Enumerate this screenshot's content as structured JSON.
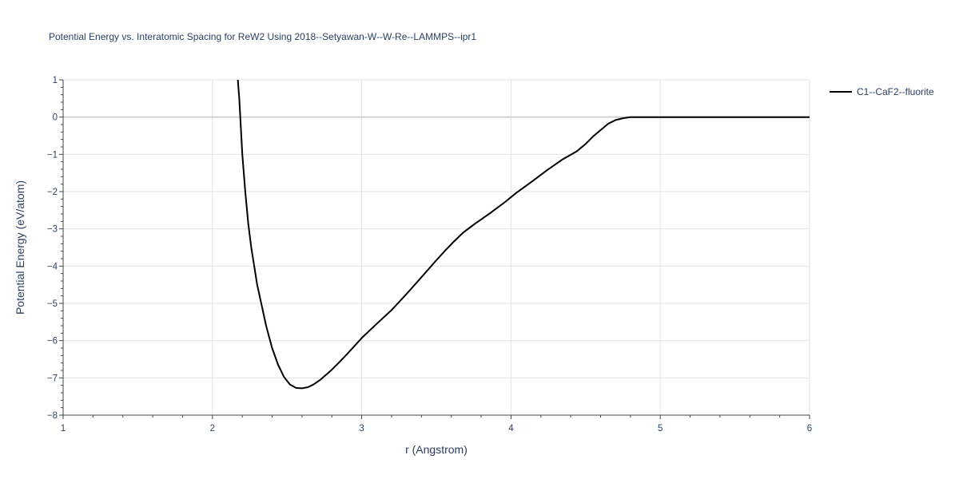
{
  "chart_data": {
    "type": "line",
    "title": "Potential Energy vs. Interatomic Spacing for ReW2 Using 2018--Setyawan-W--W-Re--LAMMPS--ipr1",
    "xlabel": "r (Angstrom)",
    "ylabel": "Potential Energy (eV/atom)",
    "xlim": [
      1,
      6
    ],
    "ylim": [
      -8,
      1
    ],
    "xticks": [
      "1",
      "2",
      "3",
      "4",
      "5",
      "6"
    ],
    "yticks": [
      "1",
      "0",
      "−1",
      "−2",
      "−3",
      "−4",
      "−5",
      "−6",
      "−7",
      "−8"
    ],
    "grid": true,
    "legend_position": "top-right",
    "series": [
      {
        "name": "C1--CaF2--fluorite",
        "color": "#000000",
        "x": [
          2.17,
          2.18,
          2.2,
          2.22,
          2.24,
          2.26,
          2.28,
          2.3,
          2.33,
          2.36,
          2.4,
          2.44,
          2.48,
          2.52,
          2.56,
          2.6,
          2.64,
          2.68,
          2.72,
          2.76,
          2.8,
          2.85,
          2.9,
          2.95,
          3.0,
          3.1,
          3.2,
          3.3,
          3.4,
          3.48,
          3.56,
          3.62,
          3.68,
          3.76,
          3.86,
          3.96,
          4.04,
          4.14,
          4.24,
          4.34,
          4.44,
          4.5,
          4.55,
          4.6,
          4.65,
          4.7,
          4.75,
          4.8,
          5.0,
          5.5,
          6.0
        ],
        "y": [
          1.0,
          0.5,
          -1.0,
          -2.0,
          -2.85,
          -3.5,
          -4.0,
          -4.5,
          -5.05,
          -5.6,
          -6.2,
          -6.65,
          -6.98,
          -7.18,
          -7.27,
          -7.28,
          -7.25,
          -7.17,
          -7.06,
          -6.92,
          -6.78,
          -6.58,
          -6.37,
          -6.15,
          -5.93,
          -5.55,
          -5.18,
          -4.75,
          -4.3,
          -3.93,
          -3.58,
          -3.33,
          -3.1,
          -2.86,
          -2.58,
          -2.28,
          -2.02,
          -1.73,
          -1.43,
          -1.15,
          -0.92,
          -0.72,
          -0.52,
          -0.35,
          -0.18,
          -0.08,
          -0.03,
          0.0,
          0.0,
          0.0,
          0.0
        ]
      }
    ]
  }
}
